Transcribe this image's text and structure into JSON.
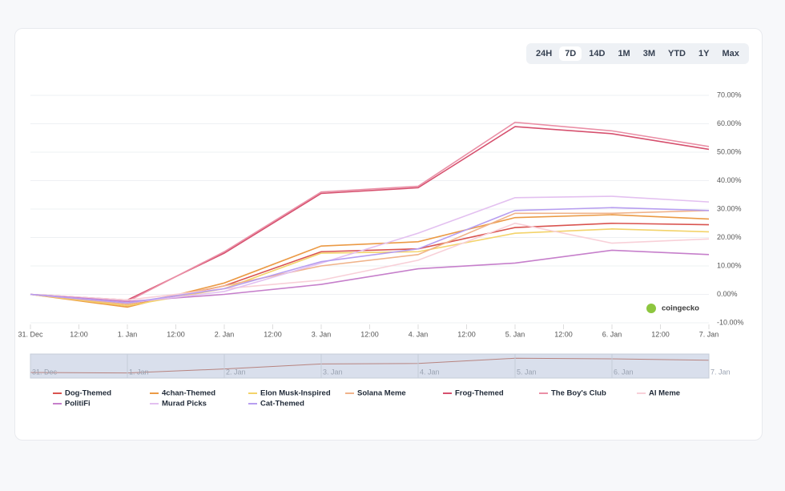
{
  "range_buttons": [
    "24H",
    "7D",
    "14D",
    "1M",
    "3M",
    "YTD",
    "1Y",
    "Max"
  ],
  "selected_range_index": 1,
  "brand": "coingecko",
  "chart_data": {
    "type": "line",
    "x": [
      0,
      1,
      2,
      3,
      4,
      5,
      6,
      7
    ],
    "xlim": [
      0,
      7
    ],
    "xticks": [
      {
        "value": 0,
        "label": "31. Dec"
      },
      {
        "value": 0.5,
        "label": "12:00"
      },
      {
        "value": 1,
        "label": "1. Jan"
      },
      {
        "value": 1.5,
        "label": "12:00"
      },
      {
        "value": 2,
        "label": "2. Jan"
      },
      {
        "value": 2.5,
        "label": "12:00"
      },
      {
        "value": 3,
        "label": "3. Jan"
      },
      {
        "value": 3.5,
        "label": "12:00"
      },
      {
        "value": 4,
        "label": "4. Jan"
      },
      {
        "value": 4.5,
        "label": "12:00"
      },
      {
        "value": 5,
        "label": "5. Jan"
      },
      {
        "value": 5.5,
        "label": "12:00"
      },
      {
        "value": 6,
        "label": "6. Jan"
      },
      {
        "value": 6.5,
        "label": "12:00"
      },
      {
        "value": 7,
        "label": "7. Jan"
      }
    ],
    "ylim": [
      -10,
      70
    ],
    "yticks": [
      {
        "value": 70,
        "label": "70.00%"
      },
      {
        "value": 60,
        "label": "60.00%"
      },
      {
        "value": 50,
        "label": "50.00%"
      },
      {
        "value": 40,
        "label": "40.00%"
      },
      {
        "value": 30,
        "label": "30.00%"
      },
      {
        "value": 20,
        "label": "20.00%"
      },
      {
        "value": 10,
        "label": "10.00%"
      },
      {
        "value": 0,
        "label": "0.00%"
      },
      {
        "value": -10,
        "label": "-10.00%"
      }
    ],
    "grid": true,
    "series": [
      {
        "name": "Dog-Themed",
        "color": "#d9534f",
        "values": [
          0,
          -4,
          3,
          15,
          16,
          23.5,
          25,
          24.5
        ]
      },
      {
        "name": "4chan-Themed",
        "color": "#eb9a45",
        "values": [
          0,
          -4.5,
          4,
          17,
          18.5,
          27,
          28,
          26.5
        ]
      },
      {
        "name": "Elon Musk-Inspired",
        "color": "#f3d36a",
        "values": [
          0,
          -4,
          2,
          14.5,
          15,
          21.5,
          23,
          22
        ]
      },
      {
        "name": "Solana Meme",
        "color": "#f0b38a",
        "values": [
          0,
          -3.5,
          3,
          10,
          14,
          28.5,
          28.5,
          29.5
        ]
      },
      {
        "name": "Frog-Themed",
        "color": "#d6506e",
        "values": [
          0,
          -2,
          14.5,
          35.5,
          37.5,
          59,
          56.5,
          51
        ]
      },
      {
        "name": "The Boy's Club",
        "color": "#ea8fa6",
        "values": [
          0,
          -2.5,
          15,
          36,
          38,
          60.5,
          57.5,
          52
        ]
      },
      {
        "name": "AI Meme",
        "color": "#f8d0d8",
        "values": [
          0,
          -2,
          2,
          5,
          12,
          25,
          18,
          19.5
        ]
      },
      {
        "name": "PolitiFi",
        "color": "#c67fcb",
        "values": [
          0,
          -2.5,
          0,
          3.5,
          9,
          11,
          15.5,
          14
        ]
      },
      {
        "name": "Murad Picks",
        "color": "#e3c0f0",
        "values": [
          0,
          -3,
          1,
          11,
          21.5,
          34,
          34.5,
          32.5
        ]
      },
      {
        "name": "Cat-Themed",
        "color": "#b79ef0",
        "values": [
          0,
          -3,
          2,
          11.5,
          16,
          29.5,
          30.5,
          29.5
        ]
      }
    ]
  }
}
